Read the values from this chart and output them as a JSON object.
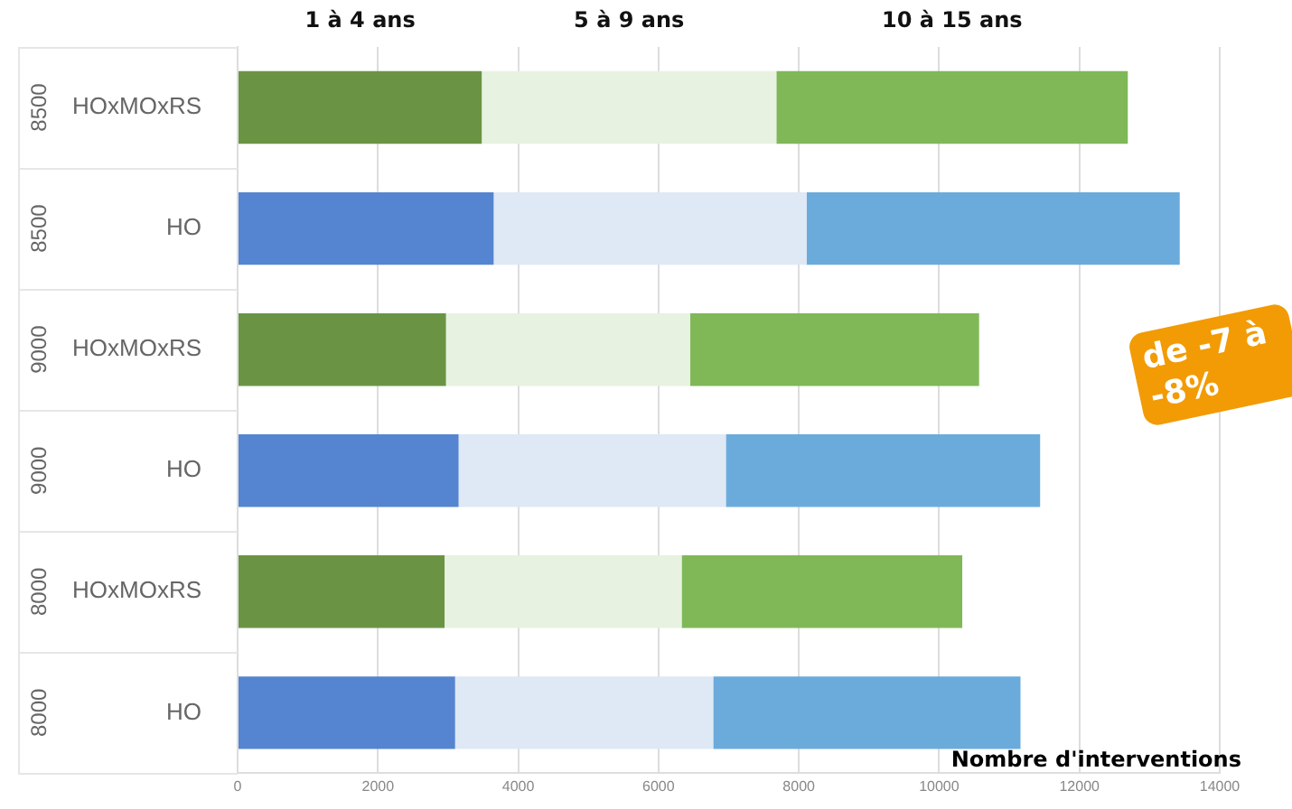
{
  "chart_data": {
    "type": "bar",
    "orientation": "horizontal",
    "stacked": true,
    "categories": [
      "HOxMOxRS",
      "HO",
      "HOxMOxRS",
      "HO",
      "HOxMOxRS",
      "HO"
    ],
    "series": [
      {
        "name": "1 à 4 ans",
        "colors": [
          "#6a9444",
          "#5585d0",
          "#6a9444",
          "#5585d0",
          "#6a9444",
          "#5585d0"
        ],
        "values": [
          3480,
          3650,
          2970,
          3150,
          2950,
          3100
        ]
      },
      {
        "name": "5 à 9 ans",
        "colors": [
          "#e7f2e0",
          "#dfe8f5",
          "#e7f2e0",
          "#dfe8f5",
          "#e7f2e0",
          "#dfe8f5"
        ],
        "values": [
          4200,
          4460,
          3480,
          3810,
          3380,
          3680
        ]
      },
      {
        "name": "10 à 15 ans",
        "colors": [
          "#80b858",
          "#6aabdc",
          "#80b858",
          "#6aabdc",
          "#80b858",
          "#6aabdc"
        ],
        "values": [
          5010,
          5320,
          4120,
          4480,
          4000,
          4380
        ]
      }
    ],
    "xlabel": "Nombre d'interventions",
    "xlim": [
      0,
      14000
    ],
    "xticks": [
      0,
      2000,
      4000,
      6000,
      8000,
      10000,
      12000,
      14000
    ],
    "grid": "x",
    "legend": false,
    "annotations": [
      "8500",
      "8500",
      "9000",
      "9000",
      "8000",
      "8000",
      "de -7 à -8%"
    ]
  }
}
